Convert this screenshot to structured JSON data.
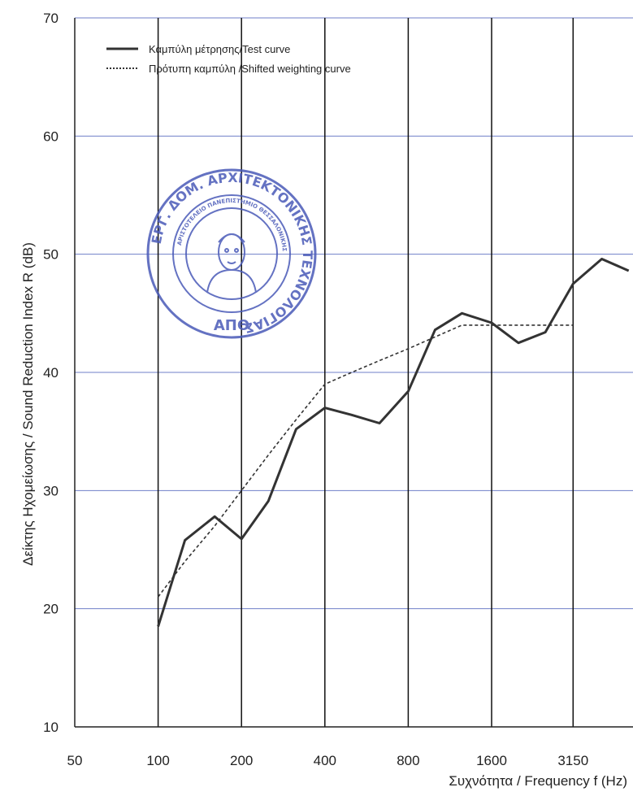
{
  "chart_data": {
    "type": "line",
    "categories": [
      "50",
      "100",
      "200",
      "400",
      "800",
      "1600",
      "3150"
    ],
    "yticks": [
      10,
      20,
      30,
      40,
      50,
      60,
      70
    ],
    "ylim": [
      10,
      70
    ],
    "xlabel": "Συχνότητα / Frequency f (Hz)",
    "ylabel": "Δείκτης Ηχομείωσης / Sound Reduction  Index R (dB)",
    "grid": true,
    "legend_position": "top-left",
    "series": [
      {
        "name": "Καμπύλη μέτρησης/Test curve",
        "style": "solid",
        "color": "#333333",
        "x": [
          100,
          125,
          160,
          200,
          250,
          315,
          400,
          500,
          630,
          800,
          1000,
          1250,
          1600,
          2000,
          2500,
          3150,
          4000,
          5000
        ],
        "values": [
          18.5,
          25.8,
          27.8,
          25.9,
          29.1,
          35.2,
          37.0,
          36.4,
          35.7,
          38.4,
          43.6,
          45.0,
          44.2,
          42.5,
          43.4,
          47.5,
          49.6,
          48.6
        ]
      },
      {
        "name": "Πρότυπη καμπύλη /Shifted weighting curve",
        "style": "dotted",
        "color": "#333333",
        "x": [
          100,
          125,
          160,
          200,
          250,
          315,
          400,
          500,
          630,
          800,
          1000,
          1250,
          1600,
          2000,
          2500,
          3150
        ],
        "values": [
          21,
          24,
          27,
          30,
          33,
          36,
          39,
          40,
          41,
          42,
          43,
          44,
          44,
          44,
          44,
          44
        ]
      }
    ]
  },
  "stamp": {
    "ring_text": "ΕΡΓ. ΔΟΜ. ΑΡΧΙΤΕΚΤΟΝΙΚΗΣ ΤΕΧΝΟΛΟΓΙΑΣ",
    "inner_text": "ΑΡΙΣΤΟΤΕΛΕΙΟ ΠΑΝΕΠΙΣΤΗΜΙΟ ΘΕΣΣΑΛΟΝΙΚΗΣ",
    "bottom_text": "ΑΠΘ",
    "color": "#4a5ab8"
  }
}
